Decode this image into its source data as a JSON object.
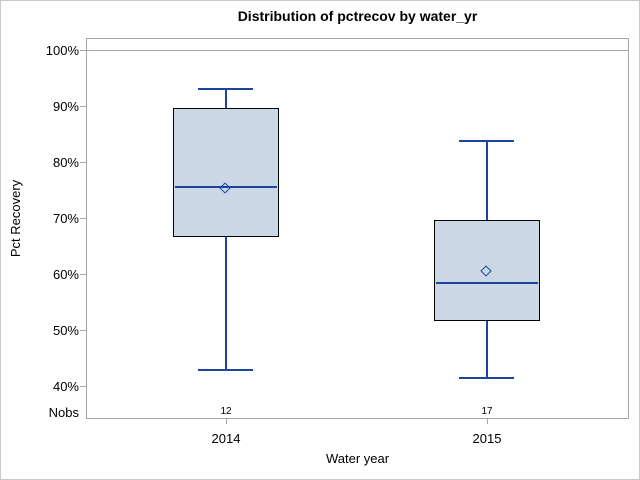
{
  "chart_data": {
    "type": "boxplot",
    "title": "Distribution of pctrecov by water_yr",
    "xlabel": "Water year",
    "ylabel": "Pct Recovery",
    "nobs_label": "Nobs",
    "categories": [
      "2014",
      "2015"
    ],
    "y_tick_values": [
      100,
      90,
      80,
      70,
      60,
      50,
      40
    ],
    "y_tick_labels": [
      "100%",
      "90%",
      "80%",
      "70%",
      "60%",
      "50%",
      "40%"
    ],
    "ylim": [
      34,
      102
    ],
    "reference_line_pct": 100,
    "grid": false,
    "legend": "none",
    "series": [
      {
        "category": "2014",
        "nobs": "12",
        "whisker_low": 42.8,
        "q1": 66.6,
        "median": 75.5,
        "q3": 89.7,
        "whisker_high": 93.0,
        "mean": 75.2
      },
      {
        "category": "2015",
        "nobs": "17",
        "whisker_low": 41.4,
        "q1": 51.6,
        "median": 58.4,
        "q3": 69.7,
        "whisker_high": 83.7,
        "mean": 60.4
      }
    ],
    "colors": {
      "box_fill": "#ccd7e6",
      "box_border": "#000000",
      "line": "#1b459e",
      "frame": "#a1a7ac",
      "text": "#000000"
    }
  }
}
